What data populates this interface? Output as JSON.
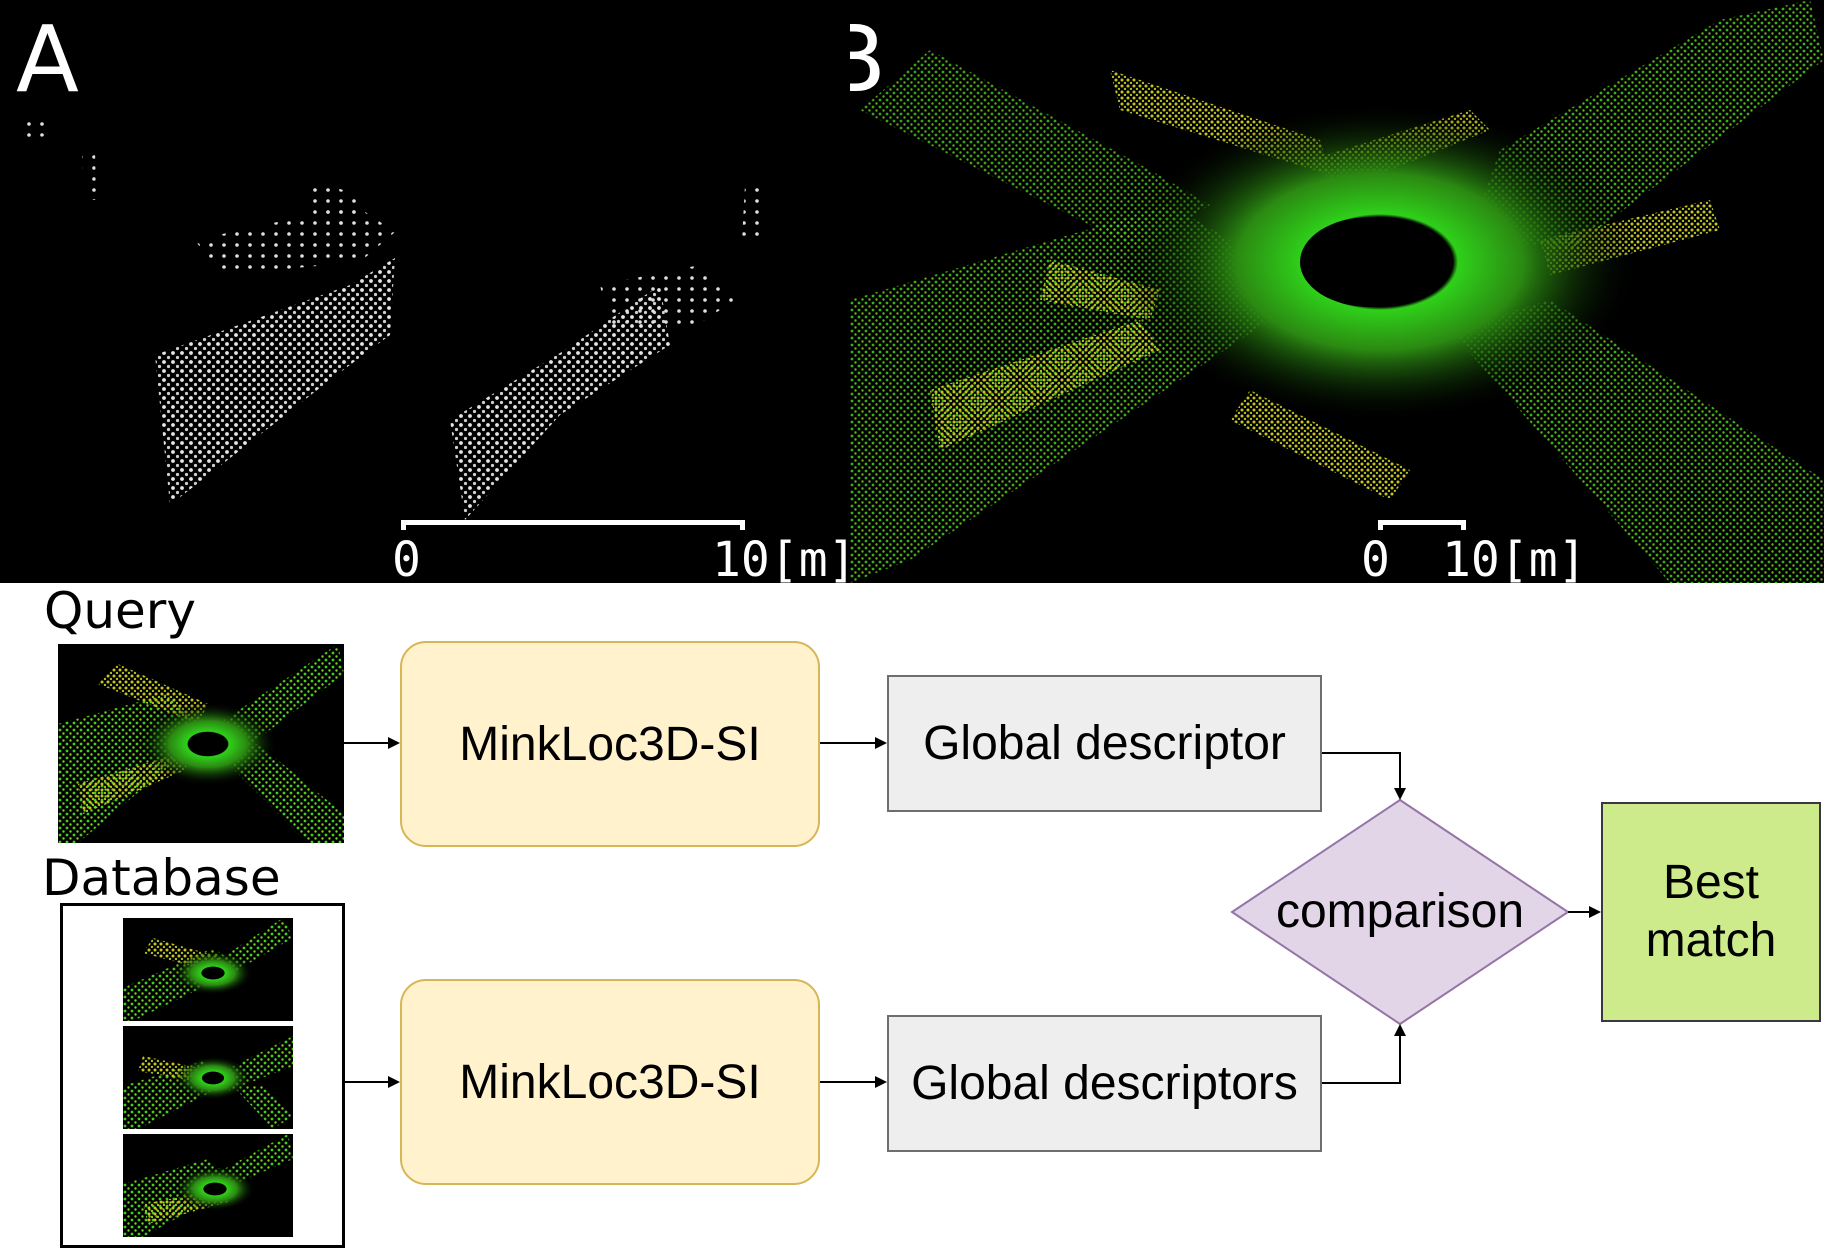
{
  "panels": {
    "a": {
      "letter": "A",
      "scale_start": "0",
      "scale_end": "10[m]"
    },
    "b": {
      "letter": "B",
      "scale_start": "0",
      "scale_end": "10[m]"
    }
  },
  "diagram": {
    "query_label": "Query",
    "database_label": "Database",
    "model_query": "MinkLoc3D-SI",
    "model_database": "MinkLoc3D-SI",
    "descriptor_query": "Global descriptor",
    "descriptor_database": "Global descriptors",
    "comparison": "comparison",
    "best_match_line1": "Best",
    "best_match_line2": "match"
  },
  "colors": {
    "background_black": "#000000",
    "point_white": "#e6e6e6",
    "point_green": "#3fd11a",
    "point_yellow": "#c9c21c",
    "process_fill": "#fff2cc",
    "process_stroke": "#d6b656",
    "descriptor_fill": "#eeeeee",
    "comparison_fill": "#e1d5e7",
    "comparison_stroke": "#9673a6",
    "best_fill": "#cdeb8b"
  }
}
